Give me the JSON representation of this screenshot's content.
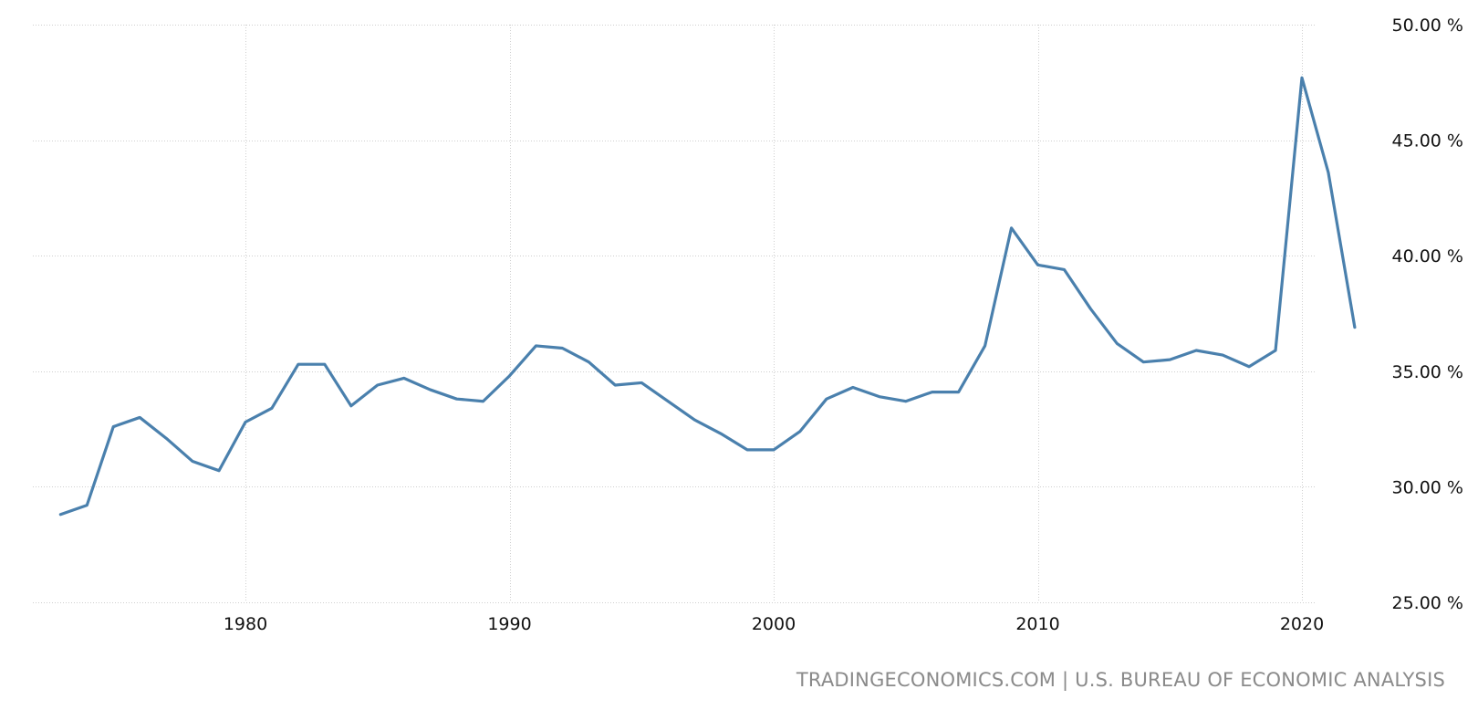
{
  "source_text": "TRADINGECONOMICS.COM | U.S. BUREAU OF ECONOMIC ANALYSIS",
  "colors": {
    "line": "#4a80ad",
    "grid": "#cfcfcf",
    "text": "#111111",
    "source": "#8a8a8a"
  },
  "chart_data": {
    "type": "line",
    "title": "",
    "xlabel": "",
    "ylabel": "",
    "xlim": [
      1973,
      2022
    ],
    "ylim": [
      25,
      50
    ],
    "x_ticks": [
      1980,
      1990,
      2000,
      2010,
      2020
    ],
    "x_tick_labels": [
      "1980",
      "1990",
      "2000",
      "2010",
      "2020"
    ],
    "y_ticks": [
      25,
      30,
      35,
      40,
      45,
      50
    ],
    "y_tick_labels": [
      "25.00 %",
      "30.00 %",
      "35.00 %",
      "40.00 %",
      "45.00 %",
      "50.00 %"
    ],
    "grid": true,
    "legend": "none",
    "series": [
      {
        "x": [
          1973,
          1974,
          1975,
          1976,
          1977,
          1978,
          1979,
          1980,
          1981,
          1982,
          1983,
          1984,
          1985,
          1986,
          1987,
          1988,
          1989,
          1990,
          1991,
          1992,
          1993,
          1994,
          1995,
          1996,
          1997,
          1998,
          1999,
          2000,
          2001,
          2002,
          2003,
          2004,
          2005,
          2006,
          2007,
          2008,
          2009,
          2010,
          2011,
          2012,
          2013,
          2014,
          2015,
          2016,
          2017,
          2018,
          2019,
          2020,
          2021,
          2022
        ],
        "values": [
          28.8,
          29.2,
          32.6,
          33.0,
          32.1,
          31.1,
          30.7,
          32.8,
          33.4,
          35.3,
          35.3,
          33.5,
          34.4,
          34.7,
          34.2,
          33.8,
          33.7,
          34.8,
          36.1,
          36.0,
          35.4,
          34.4,
          34.5,
          33.7,
          32.9,
          32.3,
          31.6,
          31.6,
          32.4,
          33.8,
          34.3,
          33.9,
          33.7,
          34.1,
          34.1,
          36.1,
          41.2,
          39.6,
          39.4,
          37.7,
          36.2,
          35.4,
          35.5,
          35.9,
          35.7,
          35.2,
          35.9,
          47.7,
          43.6,
          36.9
        ]
      }
    ]
  }
}
